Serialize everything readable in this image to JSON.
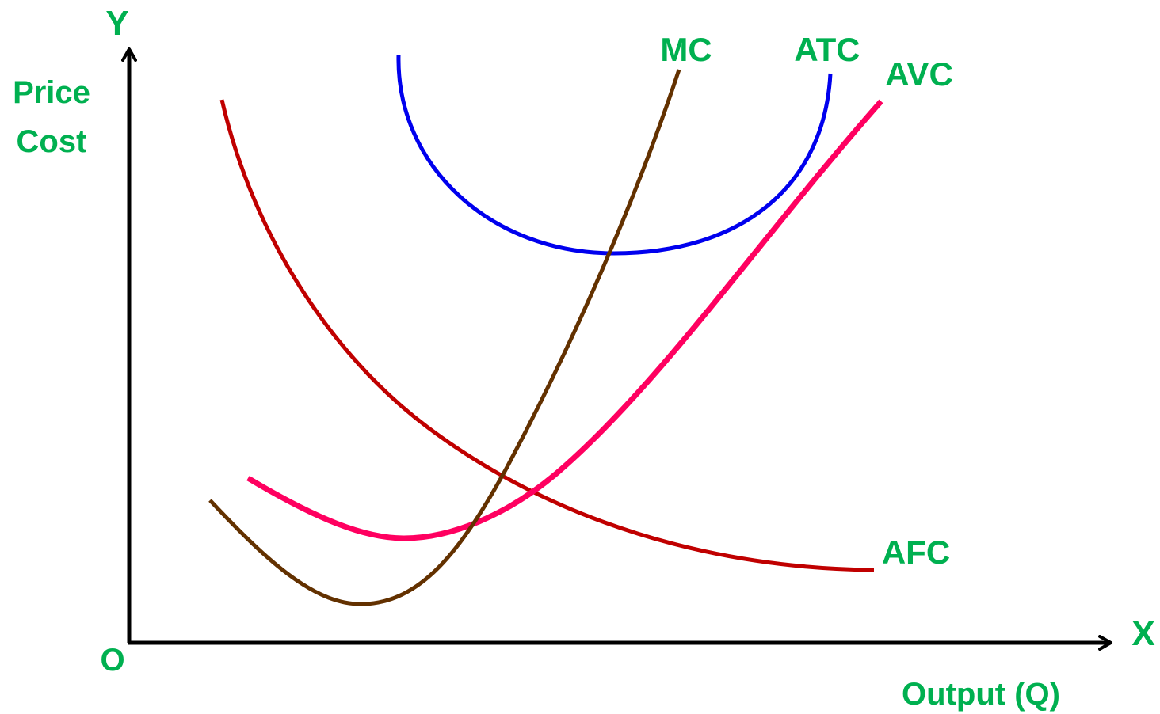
{
  "chart_data": {
    "type": "line",
    "title": "",
    "xlabel": "Output (Q)",
    "ylabel_lines": [
      "Price",
      "Cost"
    ],
    "x_axis_letter": "X",
    "y_axis_letter": "Y",
    "origin_label": "O",
    "grid": false,
    "legend": "none (curves labeled directly at their ends)",
    "x_ticks": [],
    "y_ticks": [],
    "series": [
      {
        "name": "MC",
        "color": "#633100",
        "shape": "U-shaped, minimum at low output, rises steeply; cuts AVC and ATC at their minimum points"
      },
      {
        "name": "ATC",
        "color": "#0000ee",
        "shape": "U-shaped, highest of the average curves"
      },
      {
        "name": "AVC",
        "color": "#ff0060",
        "shape": "U-shaped, rises steadily at high output"
      },
      {
        "name": "AFC",
        "color": "#c00000",
        "shape": "continuously declining toward the x-axis"
      }
    ],
    "label_color": "#00b050",
    "axis_color": "#000000"
  }
}
